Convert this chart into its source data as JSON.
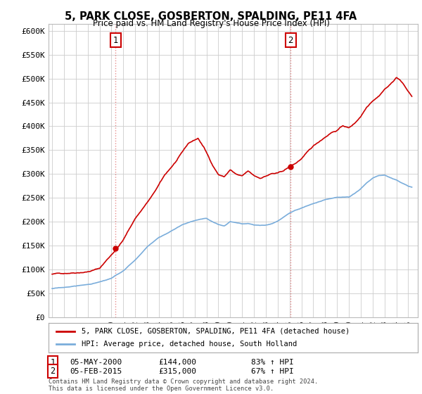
{
  "title": "5, PARK CLOSE, GOSBERTON, SPALDING, PE11 4FA",
  "subtitle": "Price paid vs. HM Land Registry's House Price Index (HPI)",
  "ylabel_ticks": [
    "£0",
    "£50K",
    "£100K",
    "£150K",
    "£200K",
    "£250K",
    "£300K",
    "£350K",
    "£400K",
    "£450K",
    "£500K",
    "£550K",
    "£600K"
  ],
  "ytick_values": [
    0,
    50000,
    100000,
    150000,
    200000,
    250000,
    300000,
    350000,
    400000,
    450000,
    500000,
    550000,
    600000
  ],
  "ylim": [
    0,
    615000
  ],
  "xlim_start": 1994.7,
  "xlim_end": 2025.8,
  "sale1_x": 2000.35,
  "sale1_y": 144000,
  "sale2_x": 2015.1,
  "sale2_y": 315000,
  "sale1_label": "1",
  "sale2_label": "2",
  "red_line_color": "#cc0000",
  "blue_line_color": "#7aaddb",
  "grid_color": "#cccccc",
  "background_color": "#ffffff",
  "legend_line1": "5, PARK CLOSE, GOSBERTON, SPALDING, PE11 4FA (detached house)",
  "legend_line2": "HPI: Average price, detached house, South Holland",
  "annotation1_date": "05-MAY-2000",
  "annotation1_price": "£144,000",
  "annotation1_hpi": "83% ↑ HPI",
  "annotation2_date": "05-FEB-2015",
  "annotation2_price": "£315,000",
  "annotation2_hpi": "67% ↑ HPI",
  "footer": "Contains HM Land Registry data © Crown copyright and database right 2024.\nThis data is licensed under the Open Government Licence v3.0.",
  "dashed_line_color": "#cc0000",
  "dashed_line_alpha": 0.45
}
